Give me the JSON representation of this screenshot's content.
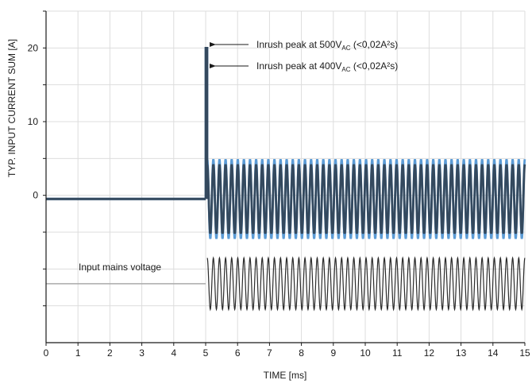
{
  "chart_data": {
    "type": "line",
    "title": "",
    "xlabel": "TIME [ms]",
    "ylabel": "TYP. INPUT CURRENT SUM [A]",
    "xlim": [
      0,
      15
    ],
    "ylim": [
      -20,
      25
    ],
    "grid": true,
    "x_ticks": [
      "0",
      "1",
      "2",
      "3",
      "4",
      "5",
      "6",
      "7",
      "8",
      "9",
      "10",
      "11",
      "12",
      "13",
      "14",
      "15"
    ],
    "y_ticks": [
      {
        "value": 20,
        "label": "20"
      },
      {
        "value": 10,
        "label": "10"
      },
      {
        "value": 0,
        "label": "0"
      }
    ],
    "series": [
      {
        "color": "#5b9bd5",
        "segments": [
          {
            "kind": "flat",
            "x": [
              0,
              5.0
            ],
            "y": -0.5
          },
          {
            "kind": "spike",
            "x": 5.0,
            "y_peak": 20
          },
          {
            "kind": "sine",
            "x": [
              5.05,
              15
            ],
            "amplitude": 5.4,
            "offset": -0.5,
            "cycles": 52
          }
        ]
      },
      {
        "color": "#34495e",
        "segments": [
          {
            "kind": "flat",
            "x": [
              0,
              5.0
            ],
            "y": -0.5
          },
          {
            "kind": "spike",
            "x": 5.0,
            "y_peak": 20
          },
          {
            "kind": "sine",
            "x": [
              5.05,
              15
            ],
            "amplitude": 4.7,
            "offset": -0.5,
            "cycles": 52
          }
        ]
      },
      {
        "color": "#2a2a2a",
        "segments": [
          {
            "kind": "flat",
            "x": [
              0,
              5.0
            ],
            "y": -12
          },
          {
            "kind": "sine",
            "x": [
              5.05,
              15
            ],
            "amplitude": 3.5,
            "offset": -12,
            "cycles": 52
          }
        ]
      }
    ],
    "annotations": [
      {
        "prefix": "Inrush peak at 500V",
        "sub": "AC",
        "suffix": " (<0,02A²s)"
      },
      {
        "prefix": "Inrush peak at 400V",
        "sub": "AC",
        "suffix": " (<0,02A²s)"
      },
      {
        "text": "Input mains voltage"
      }
    ],
    "colors": {
      "grid": "#dddddd",
      "axis": "#1a1a1a",
      "arrow": "#1a1a1a",
      "mains_flat": "#aaaaaa"
    }
  }
}
